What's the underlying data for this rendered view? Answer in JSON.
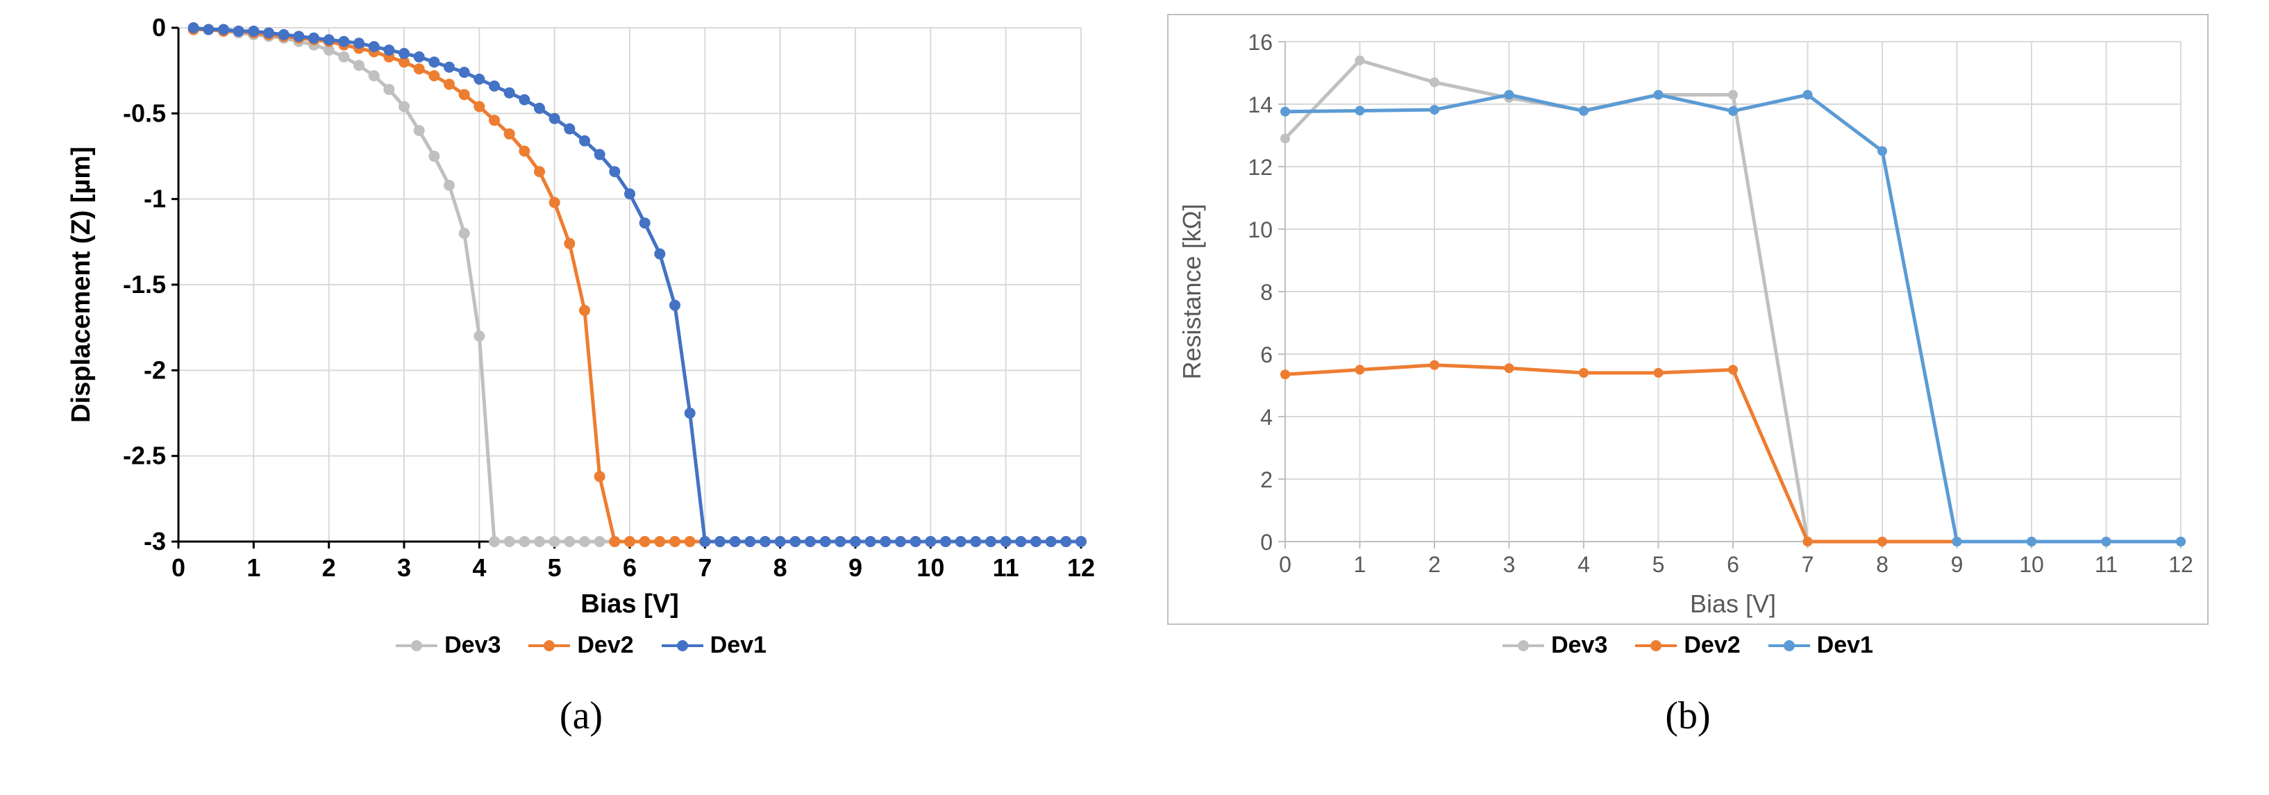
{
  "panel_a": {
    "caption": "(a)",
    "chart": {
      "type": "line",
      "xlabel": "Bias [V]",
      "ylabel": "Displacement (Z) [µm]",
      "xlim": [
        0,
        12
      ],
      "ylim": [
        -3,
        0
      ],
      "xtick_step": 1,
      "ytick_step": 0.5,
      "background_color": "#ffffff",
      "grid_color": "#d9d9d9",
      "axis_color": "#000000",
      "label_fontsize": 38,
      "tick_fontsize": 36,
      "line_width": 5,
      "marker_size": 8,
      "series": [
        {
          "name": "Dev3",
          "color": "#c0c0c0",
          "x": [
            0.2,
            0.4,
            0.6,
            0.8,
            1.0,
            1.2,
            1.4,
            1.6,
            1.8,
            2.0,
            2.2,
            2.4,
            2.6,
            2.8,
            3.0,
            3.2,
            3.4,
            3.6,
            3.8,
            4.0,
            4.2,
            4.4,
            4.6,
            4.8,
            5.0,
            5.2,
            5.4,
            5.6,
            5.8,
            6.0,
            6.2,
            6.4,
            6.6,
            6.8,
            7.0,
            7.2,
            7.4,
            7.6,
            7.8,
            8.0,
            8.2,
            8.4,
            8.6,
            8.8,
            9.0,
            9.2,
            9.4,
            9.6,
            9.8,
            10.0,
            10.2,
            10.4,
            10.6,
            10.8,
            11.0,
            11.2,
            11.4,
            11.6,
            11.8,
            12.0
          ],
          "y": [
            -0.01,
            -0.01,
            -0.02,
            -0.03,
            -0.04,
            -0.05,
            -0.06,
            -0.08,
            -0.1,
            -0.13,
            -0.17,
            -0.22,
            -0.28,
            -0.36,
            -0.46,
            -0.6,
            -0.75,
            -0.92,
            -1.2,
            -1.8,
            -3.0,
            -3.0,
            -3.0,
            -3.0,
            -3.0,
            -3.0,
            -3.0,
            -3.0,
            -3.0,
            -3.0,
            -3.0,
            -3.0,
            -3.0,
            -3.0,
            -3.0,
            -3.0,
            -3.0,
            -3.0,
            -3.0,
            -3.0,
            -3.0,
            -3.0,
            -3.0,
            -3.0,
            -3.0,
            -3.0,
            -3.0,
            -3.0,
            -3.0,
            -3.0,
            -3.0,
            -3.0,
            -3.0,
            -3.0,
            -3.0,
            -3.0,
            -3.0,
            -3.0,
            -3.0,
            -3.0
          ]
        },
        {
          "name": "Dev2",
          "color": "#ed7d31",
          "x": [
            0.2,
            0.4,
            0.6,
            0.8,
            1.0,
            1.2,
            1.4,
            1.6,
            1.8,
            2.0,
            2.2,
            2.4,
            2.6,
            2.8,
            3.0,
            3.2,
            3.4,
            3.6,
            3.8,
            4.0,
            4.2,
            4.4,
            4.6,
            4.8,
            5.0,
            5.2,
            5.4,
            5.6,
            5.8,
            6.0,
            6.2,
            6.4,
            6.6,
            6.8,
            7.0,
            7.2,
            7.4,
            7.6,
            7.8,
            8.0,
            8.2,
            8.4,
            8.6,
            8.8,
            9.0,
            9.2,
            9.4,
            9.6,
            9.8,
            10.0,
            10.2,
            10.4,
            10.6,
            10.8,
            11.0,
            11.2,
            11.4,
            11.6,
            11.8,
            12.0
          ],
          "y": [
            -0.01,
            -0.01,
            -0.02,
            -0.02,
            -0.03,
            -0.04,
            -0.05,
            -0.06,
            -0.07,
            -0.08,
            -0.1,
            -0.12,
            -0.14,
            -0.17,
            -0.2,
            -0.24,
            -0.28,
            -0.33,
            -0.39,
            -0.46,
            -0.54,
            -0.62,
            -0.72,
            -0.84,
            -1.02,
            -1.26,
            -1.65,
            -2.62,
            -3.0,
            -3.0,
            -3.0,
            -3.0,
            -3.0,
            -3.0,
            -3.0,
            -3.0,
            -3.0,
            -3.0,
            -3.0,
            -3.0,
            -3.0,
            -3.0,
            -3.0,
            -3.0,
            -3.0,
            -3.0,
            -3.0,
            -3.0,
            -3.0,
            -3.0,
            -3.0,
            -3.0,
            -3.0,
            -3.0,
            -3.0,
            -3.0,
            -3.0,
            -3.0,
            -3.0,
            -3.0
          ]
        },
        {
          "name": "Dev1",
          "color": "#4472c4",
          "x": [
            0.2,
            0.4,
            0.6,
            0.8,
            1.0,
            1.2,
            1.4,
            1.6,
            1.8,
            2.0,
            2.2,
            2.4,
            2.6,
            2.8,
            3.0,
            3.2,
            3.4,
            3.6,
            3.8,
            4.0,
            4.2,
            4.4,
            4.6,
            4.8,
            5.0,
            5.2,
            5.4,
            5.6,
            5.8,
            6.0,
            6.2,
            6.4,
            6.6,
            6.8,
            7.0,
            7.2,
            7.4,
            7.6,
            7.8,
            8.0,
            8.2,
            8.4,
            8.6,
            8.8,
            9.0,
            9.2,
            9.4,
            9.6,
            9.8,
            10.0,
            10.2,
            10.4,
            10.6,
            10.8,
            11.0,
            11.2,
            11.4,
            11.6,
            11.8,
            12.0
          ],
          "y": [
            -0.0,
            -0.01,
            -0.01,
            -0.02,
            -0.02,
            -0.03,
            -0.04,
            -0.05,
            -0.06,
            -0.07,
            -0.08,
            -0.09,
            -0.11,
            -0.13,
            -0.15,
            -0.17,
            -0.2,
            -0.23,
            -0.26,
            -0.3,
            -0.34,
            -0.38,
            -0.42,
            -0.47,
            -0.53,
            -0.59,
            -0.66,
            -0.74,
            -0.84,
            -0.97,
            -1.14,
            -1.32,
            -1.62,
            -2.25,
            -3.0,
            -3.0,
            -3.0,
            -3.0,
            -3.0,
            -3.0,
            -3.0,
            -3.0,
            -3.0,
            -3.0,
            -3.0,
            -3.0,
            -3.0,
            -3.0,
            -3.0,
            -3.0,
            -3.0,
            -3.0,
            -3.0,
            -3.0,
            -3.0,
            -3.0,
            -3.0,
            -3.0,
            -3.0,
            -3.0
          ]
        }
      ],
      "legend": {
        "items": [
          "Dev3",
          "Dev2",
          "Dev1"
        ],
        "colors": [
          "#c0c0c0",
          "#ed7d31",
          "#4472c4"
        ]
      }
    }
  },
  "panel_b": {
    "caption": "(b)",
    "chart": {
      "type": "line",
      "xlabel": "Bias [V]",
      "ylabel": "Resistance [kΩ]",
      "xlim": [
        0,
        12
      ],
      "ylim": [
        0,
        16
      ],
      "xtick_step": 1,
      "ytick_step": 2,
      "background_color": "#ffffff",
      "plot_border_color": "#bfbfbf",
      "grid_color": "#d9d9d9",
      "axis_color": "#bfbfbf",
      "label_fontsize": 36,
      "tick_fontsize": 32,
      "line_width": 5,
      "marker_size": 7,
      "series": [
        {
          "name": "Dev3",
          "color": "#c0c0c0",
          "x": [
            0,
            1,
            2,
            3,
            4,
            5,
            6,
            7,
            8,
            9,
            10,
            11,
            12
          ],
          "y": [
            12.9,
            15.4,
            14.7,
            14.2,
            13.8,
            14.3,
            14.3,
            0.0,
            0.0,
            0.0,
            0.0,
            0.0,
            0.0
          ]
        },
        {
          "name": "Dev2",
          "color": "#ed7d31",
          "x": [
            0,
            1,
            2,
            3,
            4,
            5,
            6,
            7,
            8,
            9,
            10,
            11,
            12
          ],
          "y": [
            5.35,
            5.5,
            5.65,
            5.55,
            5.4,
            5.4,
            5.5,
            0.0,
            0.0,
            0.0,
            0.0,
            0.0,
            0.0
          ]
        },
        {
          "name": "Dev1",
          "color": "#5b9bd5",
          "x": [
            0,
            1,
            2,
            3,
            4,
            5,
            6,
            7,
            8,
            9,
            10,
            11,
            12
          ],
          "y": [
            13.76,
            13.79,
            13.82,
            14.3,
            13.78,
            14.3,
            13.78,
            14.3,
            12.5,
            0.0,
            0.0,
            0.0,
            0.0
          ]
        }
      ],
      "legend": {
        "items": [
          "Dev3",
          "Dev2",
          "Dev1"
        ],
        "colors": [
          "#c0c0c0",
          "#ed7d31",
          "#5b9bd5"
        ]
      }
    }
  }
}
